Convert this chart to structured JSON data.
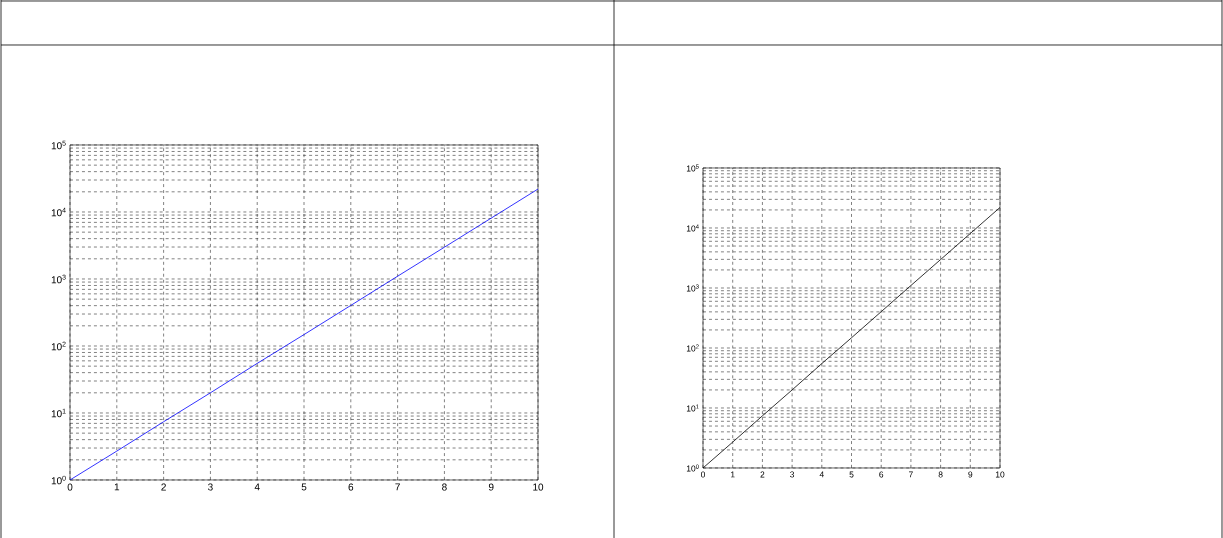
{
  "chart_data": [
    {
      "type": "line",
      "x": [
        0,
        1,
        2,
        3,
        4,
        5,
        6,
        7,
        8,
        9,
        10
      ],
      "series": [
        {
          "color": "#0000ff",
          "values": [
            1,
            2.7,
            7.4,
            20,
            55,
            148,
            403,
            1100,
            2980,
            8100,
            22000
          ]
        }
      ],
      "log": "y",
      "xlim": [
        0,
        10
      ],
      "ylim": [
        1,
        100000
      ],
      "xticks": [
        0,
        1,
        2,
        3,
        4,
        5,
        6,
        7,
        8,
        9,
        10
      ],
      "yticks": [
        {
          "value": 1,
          "label": "10$^{0}$"
        },
        {
          "value": 10,
          "label": "10$^{1}$"
        },
        {
          "value": 100,
          "label": "10$^{2}$"
        },
        {
          "value": 1000,
          "label": "10$^{3}$"
        },
        {
          "value": 10000,
          "label": "10$^{4}$"
        },
        {
          "value": 100000,
          "label": "10$^{5}$"
        }
      ],
      "grid": true,
      "line_style": "solid"
    },
    {
      "type": "line",
      "x": [
        0,
        1,
        2,
        3,
        4,
        5,
        6,
        7,
        8,
        9,
        10
      ],
      "series": [
        {
          "color": "#000000",
          "values": [
            1,
            2.7,
            7.4,
            20,
            55,
            148,
            403,
            1100,
            2980,
            8100,
            22000
          ]
        }
      ],
      "log": "y",
      "xlim": [
        0,
        10
      ],
      "ylim": [
        1,
        100000
      ],
      "xticks": [
        0,
        1,
        2,
        3,
        4,
        5,
        6,
        7,
        8,
        9,
        10
      ],
      "yticks": [
        {
          "value": 1,
          "label": "10$^{0}$"
        },
        {
          "value": 10,
          "label": "10$^{1}$"
        },
        {
          "value": 100,
          "label": "10$^{2}$"
        },
        {
          "value": 1000,
          "label": "10$^{3}$"
        },
        {
          "value": 10000,
          "label": "10$^{4}$"
        },
        {
          "value": 100000,
          "label": "10$^{5}$"
        }
      ],
      "grid": true,
      "line_style": "solid"
    }
  ]
}
